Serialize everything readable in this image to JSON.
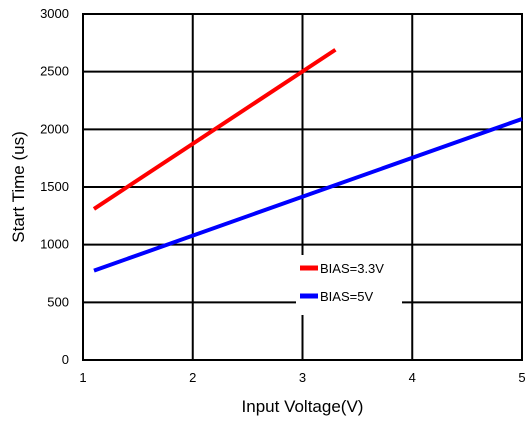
{
  "chart_data": {
    "type": "line",
    "title": "",
    "xlabel": "Input Voltage(V)",
    "ylabel": "Start Time (us)",
    "xlim": [
      1,
      5
    ],
    "ylim": [
      0,
      3000
    ],
    "xticks": [
      1,
      2,
      3,
      4,
      5
    ],
    "yticks": [
      0,
      500,
      1000,
      1500,
      2000,
      2500,
      3000
    ],
    "grid": true,
    "legend_position": "lower-right",
    "series": [
      {
        "name": "BIAS=3.3V",
        "color": "#ff0000",
        "x": [
          1.1,
          3.3
        ],
        "y": [
          1310,
          2690
        ]
      },
      {
        "name": "BIAS=5V",
        "color": "#0000ff",
        "x": [
          1.1,
          5.0
        ],
        "y": [
          775,
          2090
        ]
      }
    ]
  }
}
